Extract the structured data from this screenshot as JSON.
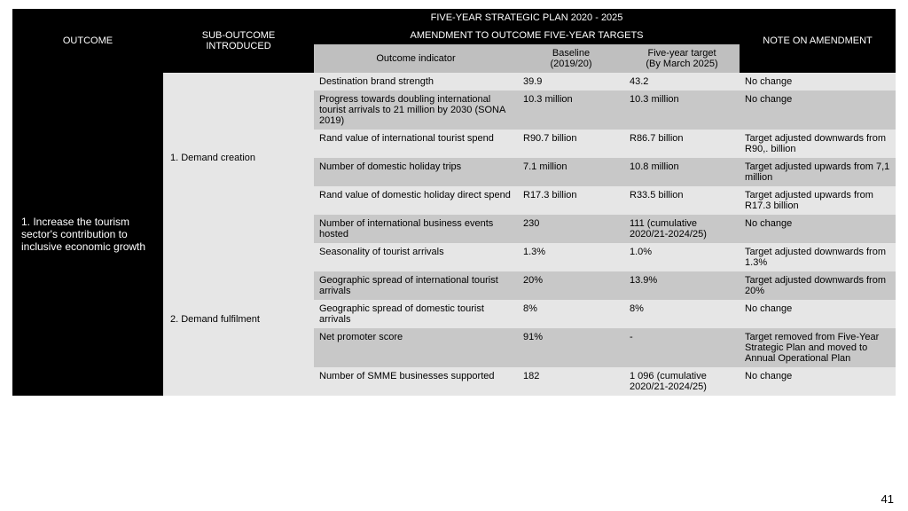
{
  "page_number": "41",
  "colors": {
    "black": "#000000",
    "white": "#ffffff",
    "header_gray": "#bfbfbf",
    "row_light": "#e6e6e6",
    "row_dark": "#c8c8c8"
  },
  "header": {
    "outcome": "OUTCOME",
    "sub_outcome": "SUB-OUTCOME INTRODUCED",
    "plan_title": "FIVE-YEAR STRATEGIC PLAN 2020 - 2025",
    "amendment_title": "AMENDMENT TO OUTCOME FIVE-YEAR TARGETS",
    "note": "NOTE ON AMENDMENT",
    "indicator": "Outcome indicator",
    "baseline_top": "Baseline",
    "baseline_bot": "(2019/20)",
    "target_top": "Five-year target",
    "target_bot": "(By March 2025)"
  },
  "outcome": "1. Increase the tourism sector's contribution to inclusive economic growth",
  "sub1": "1. Demand creation",
  "sub2": "2. Demand fulfilment",
  "rows": [
    {
      "indicator": "Destination brand strength",
      "baseline": "39.9",
      "target": "43.2",
      "note": "No change"
    },
    {
      "indicator": "Progress towards doubling international tourist arrivals to 21 million by 2030 (SONA 2019)",
      "baseline": "10.3 million",
      "target": "10.3 million",
      "note": "No change"
    },
    {
      "indicator": "Rand value of international tourist spend",
      "baseline": "R90.7 billion",
      "target": "R86.7 billion",
      "note": "Target adjusted downwards from R90,. billion"
    },
    {
      "indicator": "Number of domestic holiday trips",
      "baseline": "7.1 million",
      "target": "10.8 million",
      "note": "Target adjusted upwards from 7,1 million"
    },
    {
      "indicator": "Rand value of domestic holiday direct spend",
      "baseline": "R17.3 billion",
      "target": "R33.5 billion",
      "note": "Target adjusted upwards from R17.3 billion"
    },
    {
      "indicator": "Number of international business events hosted",
      "baseline": "230",
      "target": "111 (cumulative 2020/21-2024/25)",
      "note": "No change"
    },
    {
      "indicator": "Seasonality of tourist arrivals",
      "baseline": "1.3%",
      "target": "1.0%",
      "note": "Target adjusted downwards from 1.3%"
    },
    {
      "indicator": "Geographic spread of international tourist arrivals",
      "baseline": "20%",
      "target": "13.9%",
      "note": "Target adjusted downwards from 20%"
    },
    {
      "indicator": "Geographic spread of domestic tourist arrivals",
      "baseline": "8%",
      "target": "8%",
      "note": "No change"
    },
    {
      "indicator": "Net promoter score",
      "baseline": "91%",
      "target": "-",
      "note": "Target removed from Five-Year Strategic Plan and moved to Annual Operational Plan"
    },
    {
      "indicator": "Number of SMME businesses supported",
      "baseline": "182",
      "target": "1 096 (cumulative 2020/21-2024/25)",
      "note": "No change"
    }
  ]
}
